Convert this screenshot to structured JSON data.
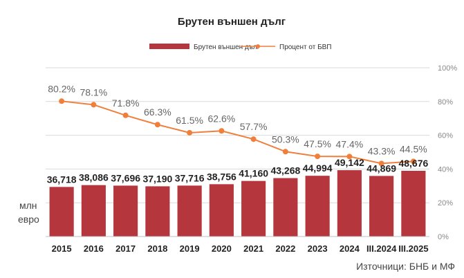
{
  "chart_data": {
    "type": "bar",
    "title": "Брутен външен дълг",
    "categories": [
      "2015",
      "2016",
      "2017",
      "2018",
      "2019",
      "2020",
      "2021",
      "2022",
      "2023",
      "2024",
      "III.2024",
      "III.2025"
    ],
    "series": [
      {
        "name": "Брутен външен дълг",
        "type": "bar",
        "axis": "left",
        "color": "#B5373D",
        "values": [
          36718,
          38086,
          37696,
          37190,
          37716,
          38756,
          41160,
          43268,
          44994,
          49142,
          44869,
          48676
        ],
        "labels": [
          "36,718",
          "38,086",
          "37,696",
          "37,190",
          "37,716",
          "38,756",
          "41,160",
          "43,268",
          "44,994",
          "49,142",
          "44,869",
          "48,676"
        ]
      },
      {
        "name": "Процент от БВП",
        "type": "line",
        "axis": "right",
        "color": "#F07F3C",
        "values": [
          80.2,
          78.1,
          71.8,
          66.3,
          61.5,
          62.6,
          57.7,
          50.3,
          47.5,
          47.4,
          43.3,
          44.5
        ],
        "labels": [
          "80.2%",
          "78.1%",
          "71.8%",
          "66.3%",
          "61.5%",
          "62.6%",
          "57.7%",
          "50.3%",
          "47.5%",
          "47.4%",
          "43.3%",
          "44.5%"
        ]
      }
    ],
    "ylabel": "млн евро",
    "ylim": [
      0,
      125000
    ],
    "y2lim": [
      0,
      100
    ],
    "y2ticks": [
      "0%",
      "20%",
      "40%",
      "60%",
      "80%",
      "100%"
    ],
    "grid": true,
    "legend": "top-center",
    "source": "Източници: БНБ и МФ"
  }
}
